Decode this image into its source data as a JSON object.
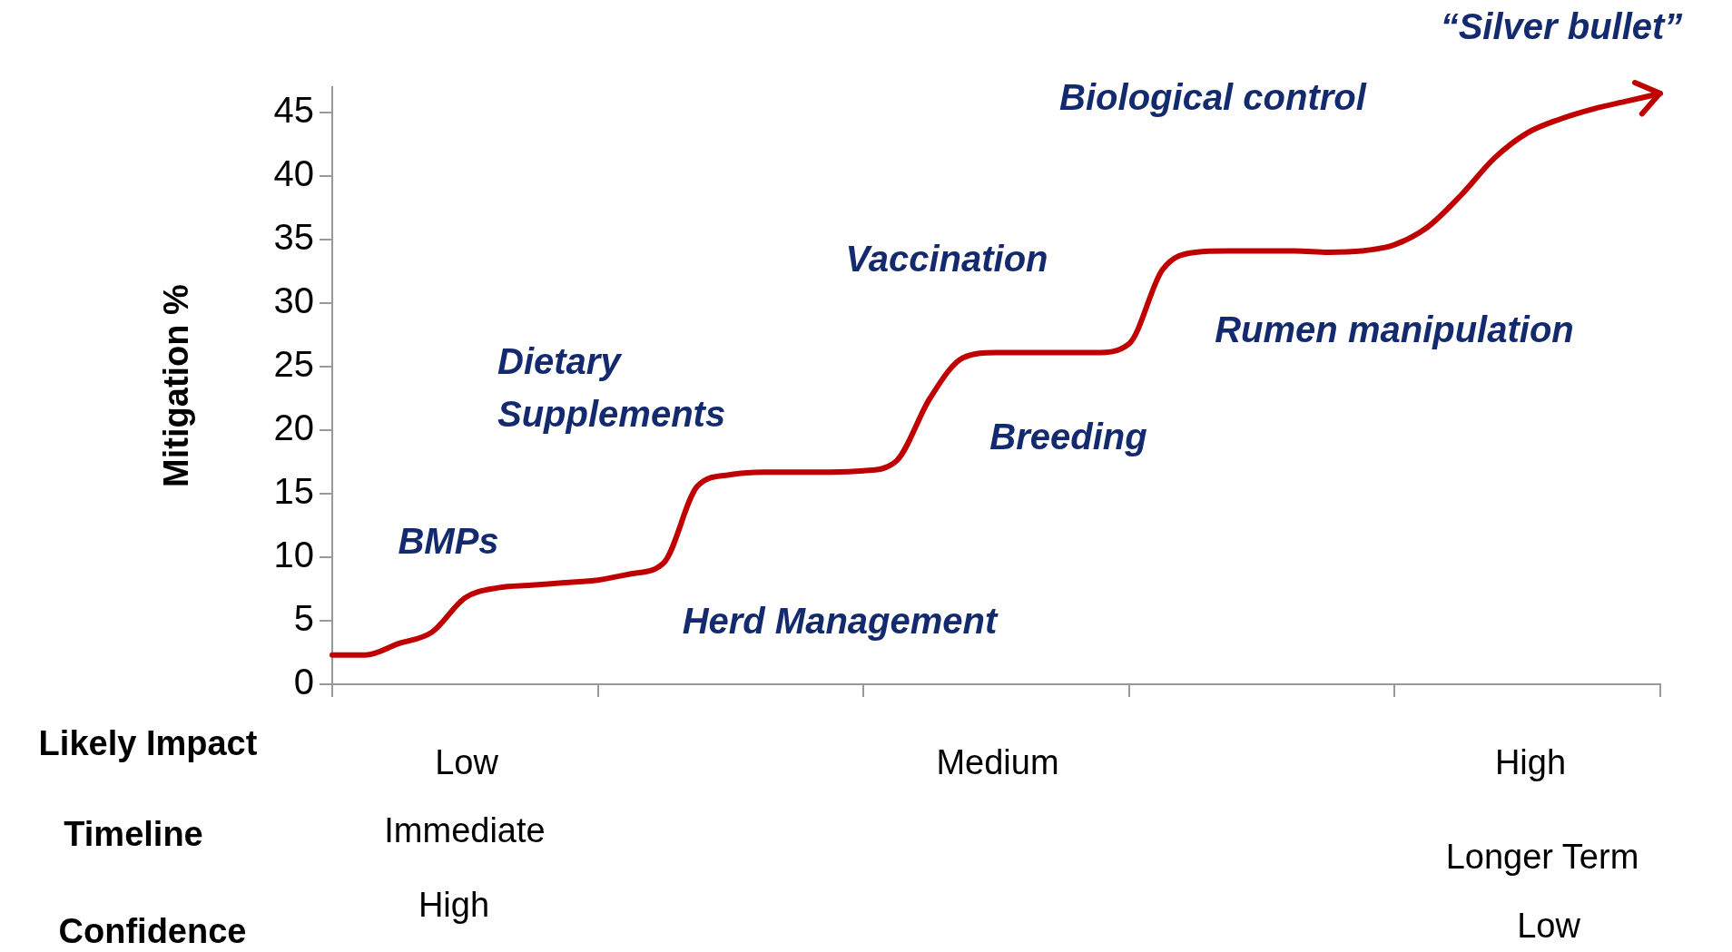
{
  "chart_data": {
    "type": "line",
    "ylabel": "Mitigation %",
    "categories": [
      null,
      null,
      null,
      null,
      null,
      null,
      null,
      null,
      null,
      null,
      null,
      null,
      null,
      null,
      null,
      null,
      null,
      null,
      null,
      null,
      null,
      null,
      null,
      null,
      null,
      null,
      null,
      null,
      null,
      null,
      null,
      null,
      null,
      null,
      null,
      null,
      null,
      null,
      null,
      null,
      null
    ],
    "series": [
      {
        "color": "#c00000",
        "values": [
          2.3,
          2.3,
          3.2,
          4.1,
          6.8,
          7.6,
          7.8,
          8.0,
          8.2,
          8.7,
          9.6,
          15.6,
          16.5,
          16.7,
          16.7,
          16.7,
          16.8,
          17.6,
          22.5,
          25.7,
          26.1,
          26.1,
          26.1,
          26.1,
          26.8,
          32.6,
          34.0,
          34.1,
          34.1,
          34.1,
          34.0,
          34.1,
          34.6,
          36.0,
          38.5,
          41.4,
          43.4,
          44.5,
          45.3,
          45.9,
          46.5
        ]
      }
    ],
    "ylim": [
      0,
      47
    ],
    "yticks": [
      0,
      5,
      10,
      15,
      20,
      25,
      30,
      35,
      40,
      45
    ],
    "grid": false,
    "legend": false,
    "marker": "none",
    "line_style": "solid",
    "annotations": [
      "“Silver bullet”",
      "Biological control",
      "Vaccination",
      "Rumen manipulation",
      "Dietary Supplements",
      "Breeding",
      "BMPs",
      "Herd Management",
      "Likely Impact",
      "Low",
      "Medium",
      "High",
      "Timeline",
      "Immediate",
      "Longer Term",
      "Confidence",
      "High",
      "Low"
    ]
  }
}
